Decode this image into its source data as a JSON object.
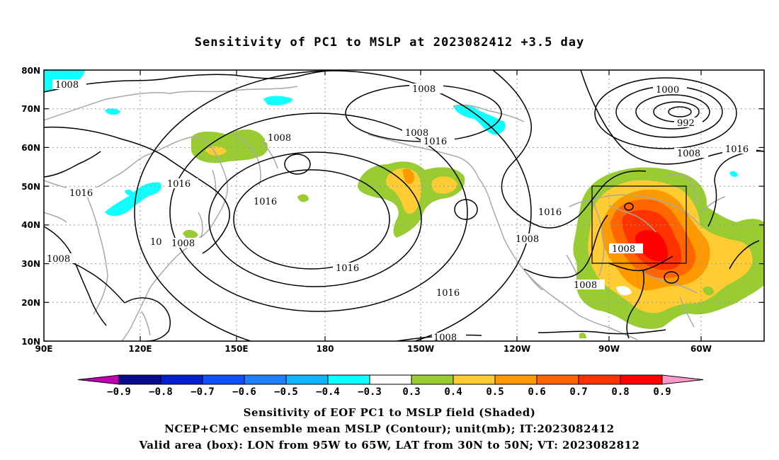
{
  "title": "Sensitivity of PC1 to MSLP at 2023082412 +3.5 day",
  "lat_labels": [
    "80N",
    "70N",
    "60N",
    "50N",
    "40N",
    "30N",
    "20N",
    "10N"
  ],
  "lon_labels": [
    "90E",
    "120E",
    "150E",
    "180",
    "150W",
    "120W",
    "90W",
    "60W"
  ],
  "contour_labels": [
    "1008",
    "1008",
    "1008",
    "1008",
    "1008",
    "1008",
    "1008",
    "1008",
    "1008",
    "1008",
    "1016",
    "1016",
    "1016",
    "1016",
    "1016",
    "1016",
    "1016",
    "1016",
    "1000",
    "992",
    "10"
  ],
  "colorbar": {
    "labels": [
      "-0.9",
      "-0.8",
      "-0.7",
      "-0.6",
      "-0.5",
      "-0.4",
      "-0.3",
      "0.3",
      "0.4",
      "0.5",
      "0.6",
      "0.7",
      "0.8",
      "0.9"
    ],
    "colors": [
      "#c000b0",
      "#0a0a8c",
      "#0020d0",
      "#1050ff",
      "#2080ff",
      "#10b4ff",
      "#10ffff",
      "#ffffff",
      "#99cc33",
      "#ffcc33",
      "#ff9900",
      "#ff6600",
      "#ff3300",
      "#ff0000",
      "#ff99cc"
    ]
  },
  "valid_box": {
    "lon_west": "95W",
    "lon_east": "65W",
    "lat_south": "30N",
    "lat_north": "50N"
  },
  "captions": {
    "line1": "Sensitivity of EOF PC1 to MSLP field (Shaded)",
    "line2": "NCEP+CMC ensemble mean MSLP (Contour); unit(mb); IT:2023082412",
    "line3": "Valid area (box): LON from 95W to 65W, LAT from 30N to 50N; VT: 2023082812"
  }
}
